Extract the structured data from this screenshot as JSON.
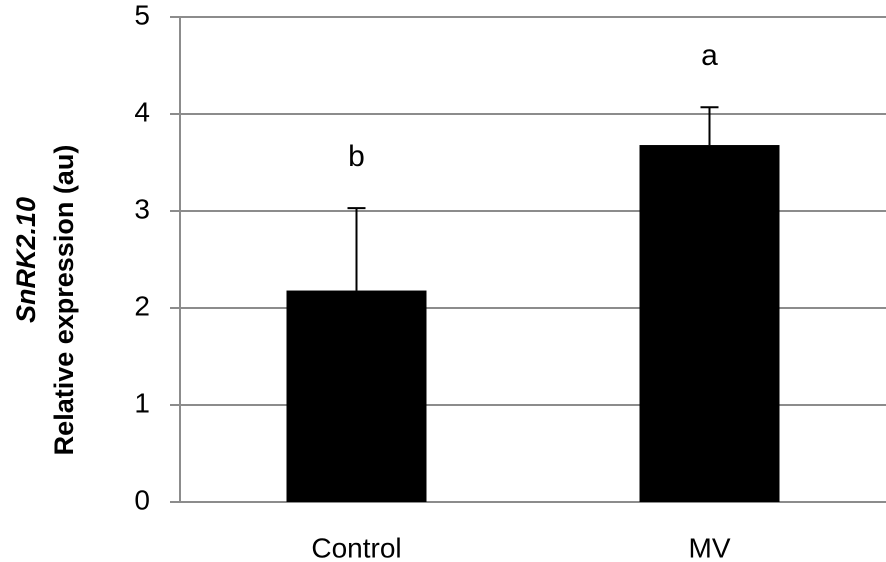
{
  "chart_data": {
    "type": "bar",
    "ylabel": [
      "SnRK2.10",
      "Relative expression (au)"
    ],
    "categories": [
      "Control",
      "MV"
    ],
    "values": [
      2.18,
      3.68
    ],
    "errors": [
      0.85,
      0.39
    ],
    "annotations": [
      "b",
      "a"
    ],
    "color": "#000000",
    "ylim": [
      0,
      5
    ],
    "yticks": [
      0,
      1,
      2,
      3,
      4,
      5
    ],
    "grid": true
  }
}
